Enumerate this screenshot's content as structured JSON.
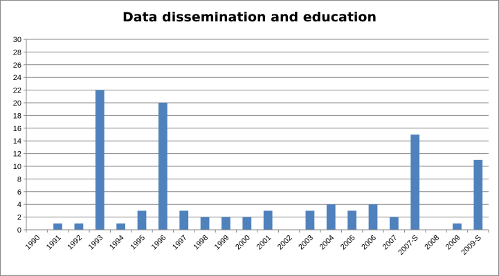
{
  "chart_data": {
    "type": "bar",
    "title": "Data dissemination and education",
    "xlabel": "",
    "ylabel": "",
    "categories": [
      "1990",
      "1991",
      "1992",
      "1993",
      "1994",
      "1995",
      "1996",
      "1997",
      "1998",
      "1999",
      "2000",
      "2001",
      "2002",
      "2003",
      "2004",
      "2005",
      "2006",
      "2007",
      "2007-S",
      "2008",
      "2009",
      "2009-S"
    ],
    "values": [
      0,
      1,
      1,
      22,
      1,
      3,
      20,
      3,
      2,
      2,
      2,
      3,
      0,
      3,
      4,
      3,
      4,
      2,
      15,
      0,
      1,
      11
    ],
    "ylim": [
      0,
      30
    ],
    "yticks": [
      "0",
      "2",
      "4",
      "6",
      "8",
      "10",
      "12",
      "14",
      "16",
      "18",
      "20",
      "22",
      "24",
      "26",
      "28",
      "30"
    ],
    "grid": true,
    "legend": "none",
    "bar_color": "#4f81bd",
    "grid_color": "#868686"
  }
}
